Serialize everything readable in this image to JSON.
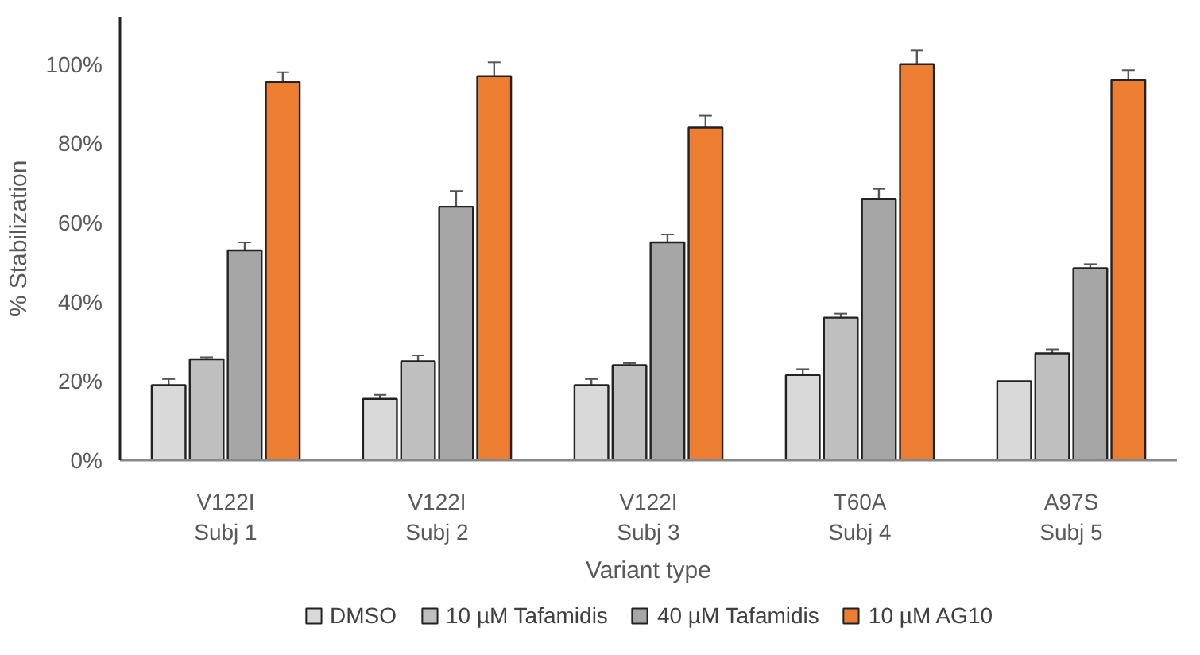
{
  "chart_data": {
    "type": "bar",
    "xlabel": "Variant type",
    "ylabel": "% Stabilization",
    "categories": [
      "V122I\nSubj 1",
      "V122I\nSubj 2",
      "V122I\nSubj 3",
      "T60A\nSubj 4",
      "A97S\nSubj 5"
    ],
    "series": [
      {
        "name": "DMSO",
        "color": "#d9d9d9",
        "values": [
          19,
          15.5,
          19,
          21.5,
          20
        ],
        "errors": [
          1.5,
          1,
          1.5,
          1.5,
          null
        ]
      },
      {
        "name": "10 µM Tafamidis",
        "color": "#bfbfbf",
        "values": [
          25.5,
          25,
          24,
          36,
          27
        ],
        "errors": [
          0.5,
          1.5,
          0.5,
          1,
          1
        ]
      },
      {
        "name": "40 µM Tafamidis",
        "color": "#a6a6a6",
        "values": [
          53,
          64,
          55,
          66,
          48.5
        ],
        "errors": [
          2,
          4,
          2,
          2.5,
          1
        ]
      },
      {
        "name": "10 µM AG10",
        "color": "#ed7d31",
        "values": [
          95.5,
          97,
          84,
          100,
          96
        ],
        "errors": [
          2.5,
          3.5,
          3,
          3.5,
          2.5
        ]
      }
    ],
    "ylim": [
      0,
      112
    ],
    "yticks": [
      {
        "value": 0,
        "label": "0%"
      },
      {
        "value": 20,
        "label": "20%"
      },
      {
        "value": 40,
        "label": "40%"
      },
      {
        "value": 60,
        "label": "60%"
      },
      {
        "value": 80,
        "label": "80%"
      },
      {
        "value": 100,
        "label": "100%"
      }
    ],
    "grid": false,
    "legend": "bottom"
  }
}
